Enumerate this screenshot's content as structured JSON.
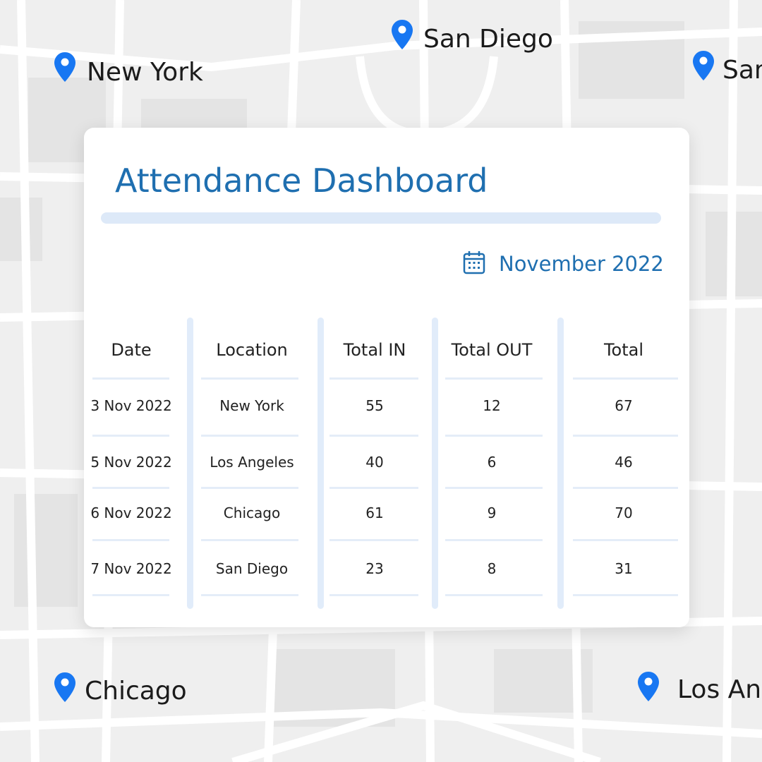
{
  "map_labels": [
    "New York",
    "San Diego",
    "San",
    "Chicago",
    "Los An"
  ],
  "title": "Attendance Dashboard",
  "period": "November 2022",
  "table": {
    "columns": [
      "Date",
      "Location",
      "Total IN",
      "Total OUT",
      "Total"
    ],
    "rows": [
      [
        "3 Nov 2022",
        "New York",
        55,
        12,
        67
      ],
      [
        "5 Nov 2022",
        "Los Angeles",
        40,
        6,
        46
      ],
      [
        "6 Nov 2022",
        "Chicago",
        61,
        9,
        70
      ],
      [
        "7 Nov 2022",
        "San Diego",
        23,
        8,
        31
      ]
    ]
  }
}
